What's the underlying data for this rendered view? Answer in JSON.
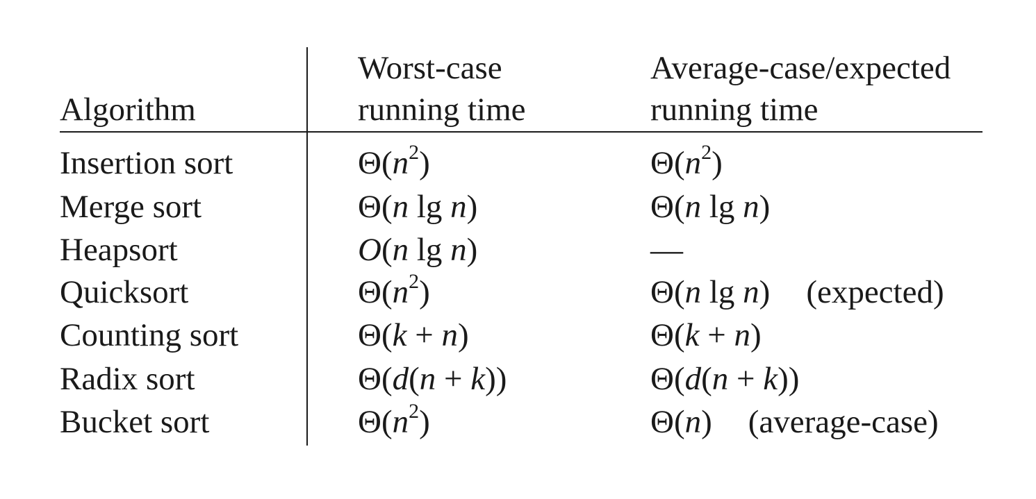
{
  "header": {
    "algorithm": "Algorithm",
    "worst_line1": "Worst-case",
    "worst_line2": "running time",
    "avg_line1": "Average-case/expected",
    "avg_line2": "running time"
  },
  "rows": [
    {
      "algorithm": "Insertion sort",
      "worst": "Θ(n²)",
      "average": "Θ(n²)",
      "note": ""
    },
    {
      "algorithm": "Merge sort",
      "worst": "Θ(n lg n)",
      "average": "Θ(n lg n)",
      "note": ""
    },
    {
      "algorithm": "Heapsort",
      "worst": "O(n lg n)",
      "average": "—",
      "note": ""
    },
    {
      "algorithm": "Quicksort",
      "worst": "Θ(n²)",
      "average": "Θ(n lg n)",
      "note": "(expected)"
    },
    {
      "algorithm": "Counting sort",
      "worst": "Θ(k + n)",
      "average": "Θ(k + n)",
      "note": ""
    },
    {
      "algorithm": "Radix sort",
      "worst": "Θ(d(n + k))",
      "average": "Θ(d(n + k))",
      "note": ""
    },
    {
      "algorithm": "Bucket sort",
      "worst": "Θ(n²)",
      "average": "Θ(n)",
      "note": "(average-case)"
    }
  ]
}
